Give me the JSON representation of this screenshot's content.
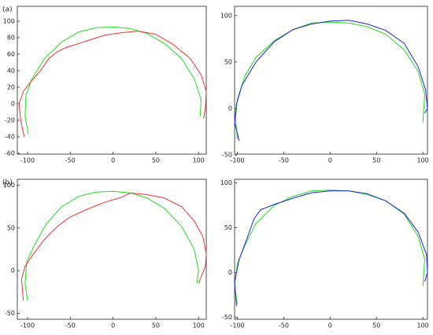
{
  "chart_data": [
    {
      "type": "line",
      "annotation": "(a)",
      "xlim": [
        -112,
        109
      ],
      "ylim": [
        -61,
        118
      ],
      "xticks": [
        -100,
        -50,
        0,
        50,
        100
      ],
      "yticks": [
        100,
        80,
        60,
        40,
        20,
        0,
        -20,
        -40,
        -60
      ],
      "series": [
        {
          "color": "#22dd22",
          "x": [
            -99,
            -103,
            -102,
            -95,
            -80,
            -60,
            -40,
            -20,
            0,
            20,
            40,
            60,
            80,
            95,
            103,
            102
          ],
          "values": [
            -37,
            -15,
            10,
            30,
            55,
            75,
            87,
            92,
            93,
            91,
            85,
            73,
            55,
            30,
            5,
            -15
          ]
        },
        {
          "color": "#ee3333",
          "x": [
            -104,
            -108,
            -110,
            -105,
            -95,
            -85,
            -75,
            -65,
            -55,
            -40,
            -25,
            -10,
            10,
            30,
            50,
            70,
            90,
            103,
            109,
            108,
            106
          ],
          "values": [
            -40,
            -20,
            0,
            15,
            28,
            40,
            55,
            63,
            68,
            73,
            78,
            83,
            86,
            88,
            84,
            72,
            55,
            35,
            15,
            -5,
            -18
          ]
        }
      ]
    },
    {
      "type": "line",
      "xlim": [
        -103,
        105
      ],
      "ylim": [
        -49,
        110
      ],
      "xticks": [
        -100,
        -50,
        0,
        50,
        100
      ],
      "yticks": [
        100,
        50,
        0,
        -50
      ],
      "series": [
        {
          "color": "#22dd22",
          "x": [
            -100,
            -102,
            -100,
            -92,
            -80,
            -60,
            -40,
            -20,
            0,
            20,
            40,
            60,
            80,
            95,
            102,
            100
          ],
          "values": [
            -33,
            -10,
            10,
            35,
            55,
            73,
            85,
            92,
            93,
            92,
            88,
            80,
            63,
            40,
            15,
            -15
          ]
        },
        {
          "color": "#2222dd",
          "x": [
            -98,
            -103,
            -101,
            -95,
            -80,
            -60,
            -40,
            -20,
            0,
            20,
            40,
            60,
            80,
            95,
            103,
            105,
            102
          ],
          "values": [
            -35,
            -15,
            5,
            25,
            50,
            72,
            85,
            91,
            94,
            95,
            91,
            84,
            70,
            45,
            20,
            0,
            -5
          ]
        }
      ]
    },
    {
      "type": "line",
      "annotation": "(b)",
      "xlim": [
        -112,
        109
      ],
      "ylim": [
        -57,
        107
      ],
      "xticks": [
        -100,
        -50,
        0,
        50,
        100
      ],
      "yticks": [
        100,
        50,
        0,
        -50
      ],
      "series": [
        {
          "color": "#22dd22",
          "x": [
            -100,
            -103,
            -101,
            -92,
            -78,
            -60,
            -40,
            -20,
            0,
            20,
            40,
            60,
            80,
            95,
            100,
            98
          ],
          "values": [
            -35,
            -15,
            10,
            30,
            55,
            75,
            87,
            92,
            93,
            91,
            85,
            73,
            52,
            25,
            0,
            -15
          ]
        },
        {
          "color": "#ee3333",
          "x": [
            -105,
            -107,
            -103,
            -95,
            -80,
            -65,
            -50,
            -30,
            -10,
            10,
            20,
            40,
            60,
            80,
            95,
            105,
            109,
            108,
            100
          ],
          "values": [
            -35,
            -10,
            5,
            17,
            37,
            52,
            63,
            72,
            80,
            86,
            91,
            89,
            85,
            75,
            58,
            40,
            20,
            5,
            -15
          ]
        }
      ]
    },
    {
      "type": "line",
      "xlim": [
        -103,
        105
      ],
      "ylim": [
        -52,
        104
      ],
      "xticks": [
        -100,
        -50,
        0,
        50,
        100
      ],
      "yticks": [
        100,
        50,
        0,
        -50
      ],
      "series": [
        {
          "color": "#22dd22",
          "x": [
            -100,
            -103,
            -100,
            -92,
            -80,
            -60,
            -40,
            -20,
            0,
            20,
            40,
            60,
            80,
            95,
            102,
            100
          ],
          "values": [
            -35,
            -15,
            10,
            30,
            55,
            75,
            85,
            91,
            92,
            91,
            87,
            80,
            65,
            40,
            15,
            -15
          ]
        },
        {
          "color": "#2222dd",
          "x": [
            -101,
            -103,
            -98,
            -90,
            -82,
            -75,
            -60,
            -40,
            -20,
            0,
            20,
            40,
            60,
            80,
            95,
            104,
            105,
            102
          ],
          "values": [
            -37,
            -10,
            15,
            37,
            60,
            70,
            76,
            83,
            89,
            91,
            91,
            88,
            80,
            66,
            45,
            20,
            0,
            -10
          ]
        }
      ]
    }
  ]
}
